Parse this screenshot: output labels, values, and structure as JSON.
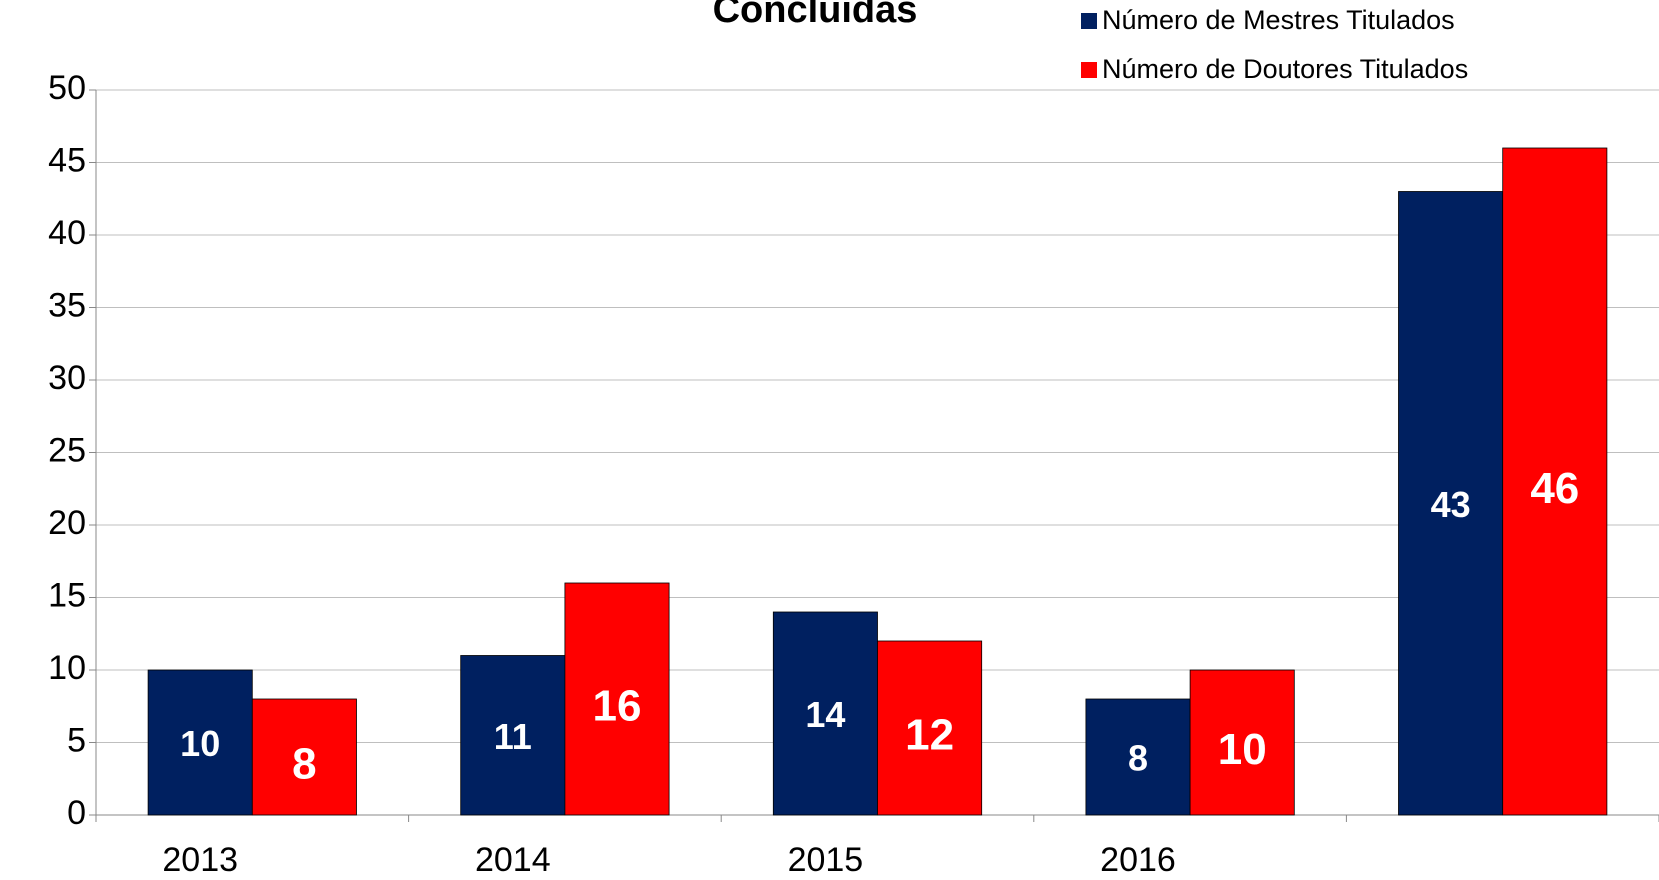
{
  "chart_data": {
    "type": "bar",
    "title": "Concluídas",
    "categories": [
      "2013",
      "2014",
      "2015",
      "2016",
      null
    ],
    "series": [
      {
        "name": "Número de Mestres Titulados",
        "color": "#002060",
        "values": [
          10,
          11,
          14,
          8,
          43
        ]
      },
      {
        "name": "Número de Doutores Titulados",
        "color": "#ff0000",
        "values": [
          8,
          16,
          12,
          10,
          46
        ]
      }
    ],
    "ylim": [
      0,
      50
    ],
    "yticks": [
      0,
      5,
      10,
      15,
      20,
      25,
      30,
      35,
      40,
      45,
      50
    ],
    "grid": true,
    "legend": "top-right"
  }
}
